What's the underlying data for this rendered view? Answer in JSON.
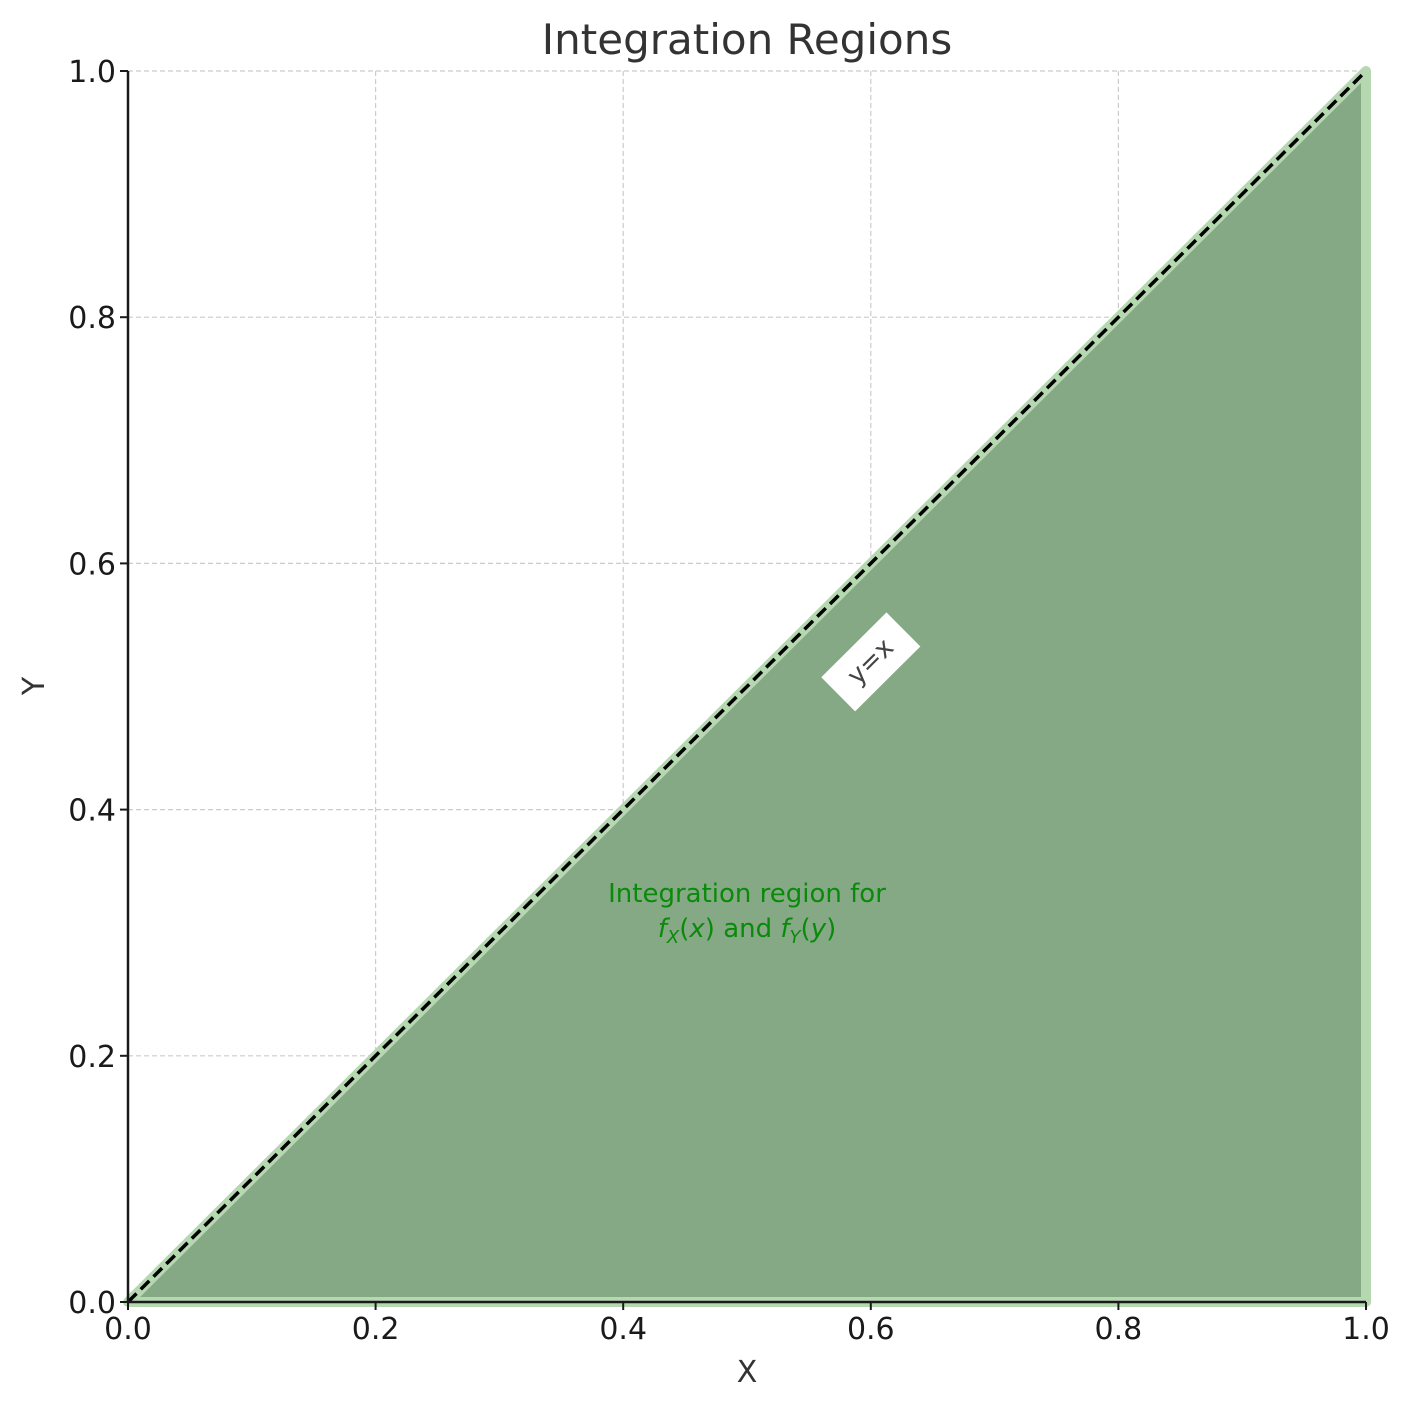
{
  "chart_data": {
    "type": "area",
    "title": "Integration Regions",
    "xlabel": "X",
    "ylabel": "Y",
    "xlim": [
      0.0,
      1.0
    ],
    "ylim": [
      0.0,
      1.0
    ],
    "xticks": [
      "0.0",
      "0.2",
      "0.4",
      "0.6",
      "0.8",
      "1.0"
    ],
    "yticks": [
      "0.0",
      "0.2",
      "0.4",
      "0.6",
      "0.8",
      "1.0"
    ],
    "grid": true,
    "region": {
      "polygon": [
        [
          0.0,
          0.0
        ],
        [
          1.0,
          0.0
        ],
        [
          1.0,
          1.0
        ]
      ],
      "color": "#86a985",
      "edge_color": "#b5d8b1",
      "label_line1": "Integration region for",
      "label_line2_parts": [
        "f",
        "X",
        "(",
        "x",
        ") and ",
        "f",
        "Y",
        "(",
        "y",
        ")"
      ],
      "label_color": "#0a8a0a",
      "label_pos": [
        0.5,
        0.32
      ]
    },
    "diagonal": {
      "x": [
        0.0,
        1.0
      ],
      "y": [
        0.0,
        1.0
      ],
      "style": "dashed",
      "color": "#000000",
      "label": "y=x",
      "label_pos": [
        0.6,
        0.52
      ]
    }
  }
}
